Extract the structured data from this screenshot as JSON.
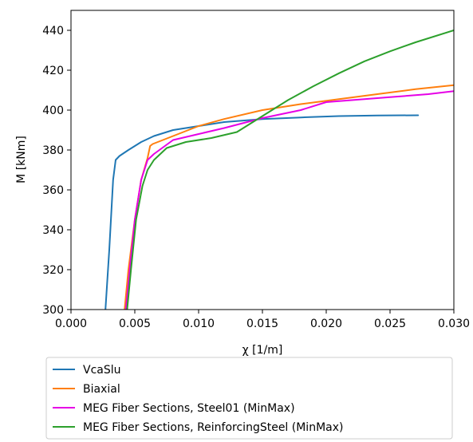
{
  "chart_data": {
    "type": "line",
    "xlabel": "χ [1/m]",
    "ylabel": "M [kNm]",
    "xlim": [
      0.0,
      0.03
    ],
    "ylim": [
      300,
      450
    ],
    "xticks": [
      0.0,
      0.005,
      0.01,
      0.015,
      0.02,
      0.025,
      0.03
    ],
    "xtick_labels": [
      "0.000",
      "0.005",
      "0.010",
      "0.015",
      "0.020",
      "0.025",
      "0.030"
    ],
    "yticks": [
      300,
      320,
      340,
      360,
      380,
      400,
      420,
      440
    ],
    "ytick_labels": [
      "300",
      "320",
      "340",
      "360",
      "380",
      "400",
      "420",
      "440"
    ],
    "grid": false,
    "legend_position": "below",
    "series": [
      {
        "name": "VcaSlu",
        "color": "#1f77b4",
        "x": [
          0.0027,
          0.003,
          0.0033,
          0.0035,
          0.0038,
          0.0045,
          0.0055,
          0.0065,
          0.008,
          0.01,
          0.012,
          0.015,
          0.018,
          0.021,
          0.024,
          0.0272
        ],
        "y": [
          300,
          330,
          365,
          375,
          377,
          380,
          384,
          387,
          390,
          392,
          394,
          395.5,
          396.3,
          397,
          397.3,
          397.4
        ]
      },
      {
        "name": "Biaxial",
        "color": "#ff7f0e",
        "x": [
          0.0042,
          0.0045,
          0.005,
          0.0055,
          0.006,
          0.0062,
          0.0064,
          0.008,
          0.01,
          0.012,
          0.015,
          0.018,
          0.021,
          0.024,
          0.027,
          0.03
        ],
        "y": [
          300,
          320,
          345,
          365,
          376,
          382,
          383,
          387,
          392,
          395.5,
          400,
          403,
          405.5,
          408,
          410.5,
          412.5
        ]
      },
      {
        "name": "MEG Fiber Sections, Steel01 (MinMax)",
        "color": "#e600e6",
        "x": [
          0.0043,
          0.0046,
          0.005,
          0.0055,
          0.006,
          0.0065,
          0.008,
          0.01,
          0.012,
          0.015,
          0.018,
          0.02,
          0.022,
          0.025,
          0.028,
          0.03
        ],
        "y": [
          300,
          320,
          345,
          365,
          375,
          378,
          385,
          388,
          391,
          396,
          400,
          404,
          405,
          406.5,
          408,
          409.5
        ]
      },
      {
        "name": "MEG Fiber Sections, ReinforcingSteel (MinMax)",
        "color": "#2ca02c",
        "x": [
          0.0044,
          0.0047,
          0.0051,
          0.0056,
          0.006,
          0.0065,
          0.0075,
          0.009,
          0.011,
          0.013,
          0.015,
          0.017,
          0.019,
          0.021,
          0.023,
          0.025,
          0.027,
          0.03
        ],
        "y": [
          300,
          320,
          345,
          362,
          370,
          375,
          381,
          384,
          386,
          389,
          397,
          405,
          412,
          418.5,
          424.5,
          429.5,
          434,
          440
        ]
      }
    ]
  }
}
